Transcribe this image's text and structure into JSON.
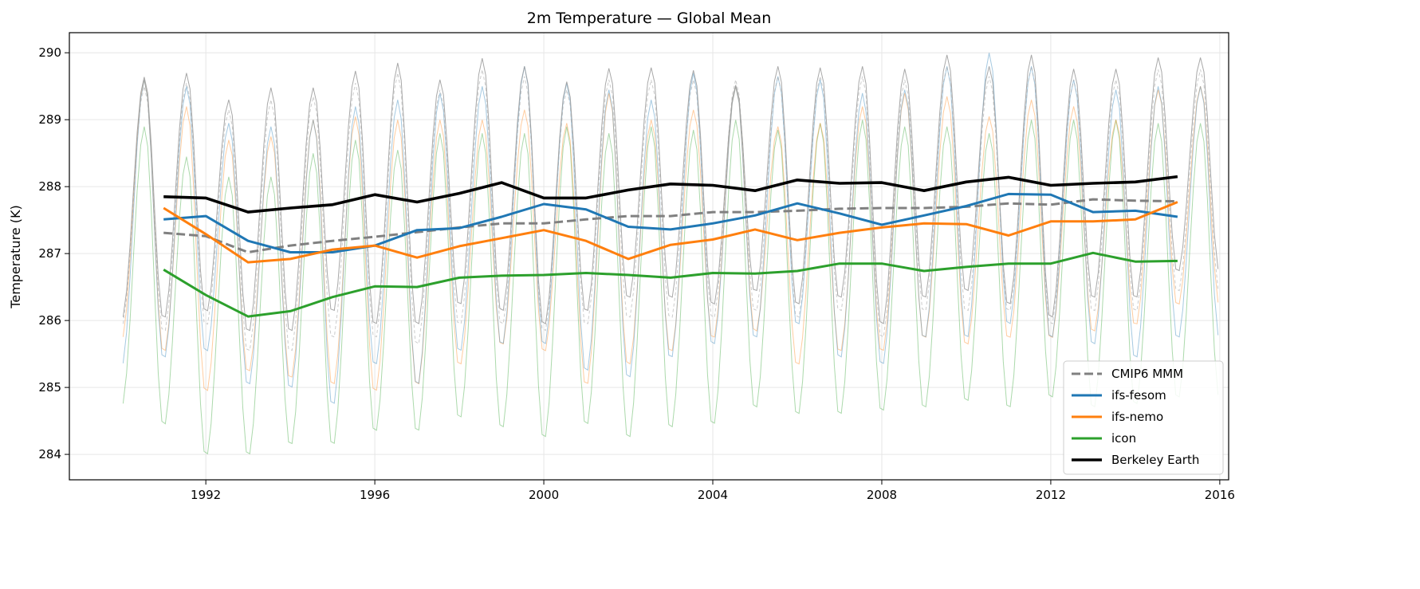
{
  "chart_data": {
    "type": "line",
    "title": "2m Temperature — Global Mean",
    "xlabel": "",
    "ylabel": "Temperature (K)",
    "xlim": [
      1988.77,
      2016.21
    ],
    "ylim": [
      283.62,
      290.3
    ],
    "xticks": [
      1992,
      1996,
      2000,
      2004,
      2008,
      2012,
      2016
    ],
    "yticks": [
      284,
      285,
      286,
      287,
      288,
      289,
      290
    ],
    "grid": true,
    "legend_placement": "bottom-right",
    "annual_years": [
      1991,
      1992,
      1993,
      1994,
      1995,
      1996,
      1997,
      1998,
      1999,
      2000,
      2001,
      2002,
      2003,
      2004,
      2005,
      2006,
      2007,
      2008,
      2009,
      2010,
      2011,
      2012,
      2013,
      2014,
      2015
    ],
    "series": [
      {
        "name": "CMIP6 MMM",
        "color": "#808080",
        "style": "dashed",
        "annual": [
          287.31,
          287.26,
          287.02,
          287.12,
          287.19,
          287.25,
          287.32,
          287.39,
          287.45,
          287.45,
          287.51,
          287.56,
          287.56,
          287.62,
          287.62,
          287.64,
          287.67,
          287.68,
          287.68,
          287.7,
          287.75,
          287.73,
          287.81,
          287.79,
          287.78
        ],
        "monthly_peaks": [
          289.5,
          289.55,
          289.15,
          289.3,
          289.35,
          289.55,
          289.7,
          289.45,
          289.75,
          289.65,
          289.45,
          289.6,
          289.6,
          289.6,
          289.6,
          289.65,
          289.65,
          289.65,
          289.6,
          289.8,
          289.65,
          289.8,
          289.6,
          289.6,
          289.75,
          289.75
        ],
        "monthly_troughs": [
          285.9,
          285.8,
          285.9,
          285.5,
          285.5,
          285.7,
          285.7,
          285.6,
          285.9,
          285.9,
          285.8,
          285.9,
          286.0,
          286.0,
          286.0,
          286.1,
          286.0,
          286.1,
          285.7,
          286.1,
          286.1,
          286.1,
          285.9,
          286.1,
          286.1,
          286.4
        ]
      },
      {
        "name": "ifs-fesom",
        "color": "#1f77b4",
        "style": "solid",
        "annual": [
          287.51,
          287.56,
          287.19,
          287.02,
          287.02,
          287.12,
          287.35,
          287.38,
          287.55,
          287.74,
          287.66,
          287.4,
          287.36,
          287.45,
          287.57,
          287.75,
          287.6,
          287.43,
          287.57,
          287.71,
          287.89,
          287.88,
          287.62,
          287.64,
          287.55
        ],
        "monthly_peaks": [
          289.6,
          289.5,
          288.95,
          288.9,
          289.0,
          289.2,
          289.3,
          289.4,
          289.5,
          289.8,
          289.55,
          289.45,
          289.3,
          289.7,
          289.5,
          289.65,
          289.6,
          289.4,
          289.45,
          289.8,
          290.0,
          289.8,
          289.6,
          289.45,
          289.5,
          289.5
        ],
        "monthly_troughs": [
          285.3,
          285.4,
          285.5,
          285.0,
          284.95,
          284.7,
          285.3,
          285.0,
          285.5,
          285.6,
          285.6,
          285.2,
          285.1,
          285.4,
          285.6,
          285.7,
          285.9,
          285.4,
          285.3,
          285.7,
          285.7,
          285.9,
          285.7,
          285.6,
          285.4,
          285.7
        ]
      },
      {
        "name": "ifs-nemo",
        "color": "#ff7f0e",
        "style": "solid",
        "annual": [
          287.68,
          287.29,
          286.87,
          286.92,
          287.06,
          287.12,
          286.94,
          287.11,
          287.23,
          287.35,
          287.19,
          286.92,
          287.13,
          287.21,
          287.36,
          287.2,
          287.31,
          287.39,
          287.45,
          287.44,
          287.27,
          287.48,
          287.48,
          287.51,
          287.77
        ],
        "monthly_peaks": [
          289.6,
          289.2,
          288.7,
          288.75,
          289.0,
          289.05,
          289.0,
          289.0,
          289.0,
          289.15,
          288.95,
          289.4,
          289.0,
          289.15,
          289.5,
          288.9,
          288.95,
          289.2,
          289.4,
          289.35,
          289.05,
          289.3,
          289.2,
          289.0,
          289.45,
          289.5
        ],
        "monthly_troughs": [
          285.7,
          285.5,
          284.9,
          285.2,
          285.1,
          285.0,
          284.9,
          285.0,
          285.3,
          285.6,
          285.5,
          285.0,
          285.3,
          285.5,
          285.7,
          285.8,
          285.3,
          285.5,
          285.5,
          285.7,
          285.6,
          285.7,
          285.7,
          285.8,
          285.9,
          286.2
        ]
      },
      {
        "name": "icon",
        "color": "#2ca02c",
        "style": "solid",
        "annual": [
          286.76,
          286.38,
          286.06,
          286.14,
          286.35,
          286.51,
          286.5,
          286.64,
          286.67,
          286.68,
          286.71,
          286.68,
          286.64,
          286.71,
          286.7,
          286.74,
          286.85,
          286.85,
          286.74,
          286.8,
          286.85,
          286.85,
          287.01,
          286.88,
          286.89
        ],
        "monthly_peaks": [
          288.9,
          288.45,
          288.15,
          288.15,
          288.5,
          288.7,
          288.55,
          288.8,
          288.8,
          288.8,
          288.9,
          288.8,
          288.9,
          288.85,
          289.0,
          288.85,
          288.95,
          289.0,
          288.9,
          288.9,
          288.8,
          289.0,
          289.0,
          289.0,
          288.95,
          288.95
        ],
        "monthly_troughs": [
          284.7,
          284.4,
          283.95,
          283.95,
          284.1,
          284.1,
          284.3,
          284.3,
          284.5,
          284.35,
          284.2,
          284.4,
          284.2,
          284.35,
          284.4,
          284.65,
          284.55,
          284.55,
          284.6,
          284.65,
          284.75,
          284.65,
          284.8,
          284.65,
          284.7,
          284.8
        ]
      },
      {
        "name": "Berkeley Earth",
        "color": "#000000",
        "style": "solid",
        "annual": [
          287.85,
          287.83,
          287.62,
          287.68,
          287.73,
          287.88,
          287.77,
          287.9,
          288.06,
          287.83,
          287.83,
          287.95,
          288.04,
          288.02,
          287.94,
          288.1,
          288.05,
          288.06,
          287.94,
          288.07,
          288.14,
          288.02,
          288.05,
          288.07,
          288.15
        ],
        "monthly_peaks": [
          289.64,
          289.7,
          289.3,
          289.48,
          289.48,
          289.73,
          289.85,
          289.6,
          289.92,
          289.8,
          289.57,
          289.77,
          289.78,
          289.74,
          289.52,
          289.8,
          289.78,
          289.8,
          289.76,
          289.97,
          289.8,
          289.97,
          289.76,
          289.76,
          289.93,
          289.93
        ],
        "monthly_troughs": [
          286.0,
          286.0,
          286.1,
          285.8,
          285.8,
          286.1,
          285.9,
          285.9,
          286.2,
          286.1,
          285.9,
          286.1,
          286.3,
          286.3,
          286.2,
          286.4,
          286.2,
          286.3,
          285.9,
          286.3,
          286.4,
          286.2,
          286.0,
          286.3,
          286.3,
          286.7
        ]
      }
    ],
    "monthly_start_year": 1990
  }
}
